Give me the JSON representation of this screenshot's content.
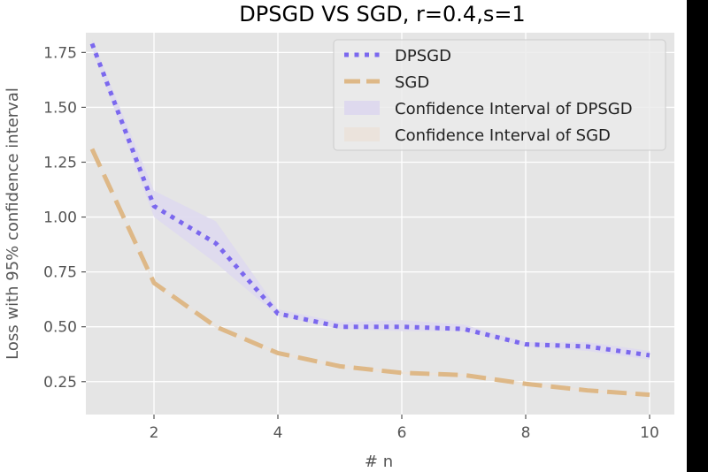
{
  "chart_data": {
    "type": "line",
    "title": "DPSGD VS SGD, r=0.4,s=1",
    "xlabel": "# n",
    "ylabel": "Loss with 95% confidence interval",
    "x": [
      1,
      2,
      3,
      4,
      5,
      6,
      7,
      8,
      9,
      10
    ],
    "xlim": [
      0.9,
      10.4
    ],
    "ylim": [
      0.1,
      1.84
    ],
    "xticks": [
      2,
      4,
      6,
      8,
      10
    ],
    "xtick_labels": [
      "2",
      "4",
      "6",
      "8",
      "10"
    ],
    "yticks": [
      0.25,
      0.5,
      0.75,
      1.0,
      1.25,
      1.5,
      1.75
    ],
    "ytick_labels": [
      "0.25",
      "0.50",
      "0.75",
      "1.00",
      "1.25",
      "1.50",
      "1.75"
    ],
    "grid": true,
    "legend_position": "top-right",
    "series": [
      {
        "name": "DPSGD",
        "style": "dotted",
        "color": "#7b68ee",
        "values": [
          1.79,
          1.05,
          0.88,
          0.56,
          0.5,
          0.5,
          0.49,
          0.42,
          0.41,
          0.37
        ],
        "ci_lower": [
          1.77,
          1.0,
          0.79,
          0.55,
          0.49,
          0.48,
          0.48,
          0.41,
          0.39,
          0.35
        ],
        "ci_upper": [
          1.81,
          1.12,
          0.98,
          0.58,
          0.52,
          0.53,
          0.51,
          0.43,
          0.43,
          0.39
        ],
        "ci_name": "Confidence Interval of DPSGD",
        "ci_color": "#ded9ee"
      },
      {
        "name": "SGD",
        "style": "dashed",
        "color": "#deb887",
        "values": [
          1.31,
          0.7,
          0.5,
          0.38,
          0.32,
          0.29,
          0.28,
          0.24,
          0.21,
          0.19
        ],
        "ci_lower": [
          1.305,
          0.695,
          0.495,
          0.375,
          0.315,
          0.285,
          0.275,
          0.235,
          0.205,
          0.185
        ],
        "ci_upper": [
          1.315,
          0.705,
          0.505,
          0.385,
          0.325,
          0.295,
          0.285,
          0.245,
          0.215,
          0.195
        ],
        "ci_name": "Confidence Interval of SGD",
        "ci_color": "#ebe3dc"
      }
    ]
  }
}
